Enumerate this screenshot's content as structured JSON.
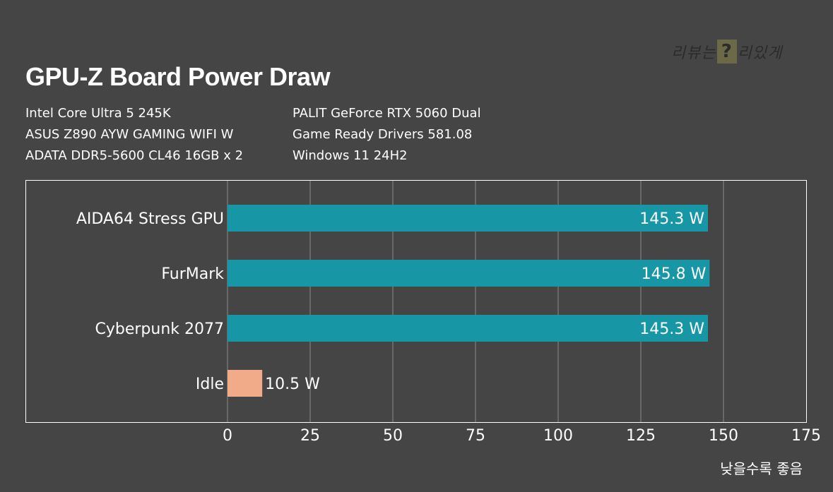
{
  "watermark": {
    "pre": "리뷰는",
    "mark": "?",
    "post": "리있게"
  },
  "specs": {
    "left": [
      "Intel Core Ultra 5 245K",
      "ASUS Z890 AYW GAMING WIFI W",
      "ADATA DDR5-5600 CL46 16GB x 2"
    ],
    "right": [
      "PALIT GeForce RTX 5060 Dual",
      "Game Ready Drivers 581.08",
      "Windows 11 24H2"
    ]
  },
  "note": "낮을수록 좋음",
  "colors": {
    "background": "#454545",
    "load": "#1797a6",
    "idle": "#f2ab88",
    "grid": "#8a8a8a",
    "frame": "#ffffff"
  },
  "chart_data": {
    "type": "bar",
    "orientation": "horizontal",
    "title": "GPU-Z Board Power Draw",
    "categories": [
      "AIDA64 Stress GPU",
      "FurMark",
      "Cyberpunk 2077",
      "Idle"
    ],
    "values": [
      145.3,
      145.8,
      145.3,
      10.5
    ],
    "data_labels": [
      "145.3 W",
      "145.8 W",
      "145.3 W",
      "10.5 W"
    ],
    "bar_colors": [
      "#1797a6",
      "#1797a6",
      "#1797a6",
      "#f2ab88"
    ],
    "xlim": [
      0,
      175
    ],
    "xticks": [
      0,
      25,
      50,
      75,
      100,
      125,
      150,
      175
    ],
    "grid": "vertical",
    "legend": "none"
  }
}
